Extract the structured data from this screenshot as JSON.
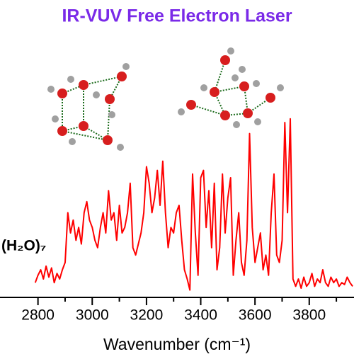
{
  "chart_data": {
    "type": "line",
    "title": "IR-VUV Free Electron Laser",
    "xlabel": "Wavenumber (cm⁻¹)",
    "annotation": "(H₂O)₇",
    "x": [
      2790,
      2800,
      2810,
      2820,
      2830,
      2840,
      2850,
      2860,
      2870,
      2880,
      2890,
      2900,
      2910,
      2920,
      2930,
      2940,
      2950,
      2960,
      2970,
      2980,
      2990,
      3000,
      3010,
      3020,
      3030,
      3040,
      3050,
      3060,
      3070,
      3080,
      3090,
      3100,
      3110,
      3120,
      3130,
      3140,
      3150,
      3160,
      3170,
      3180,
      3190,
      3200,
      3210,
      3220,
      3230,
      3240,
      3250,
      3260,
      3270,
      3280,
      3290,
      3300,
      3310,
      3320,
      3330,
      3340,
      3350,
      3360,
      3370,
      3380,
      3390,
      3400,
      3410,
      3420,
      3430,
      3440,
      3450,
      3460,
      3470,
      3480,
      3490,
      3500,
      3510,
      3520,
      3530,
      3540,
      3550,
      3560,
      3570,
      3580,
      3590,
      3600,
      3610,
      3620,
      3630,
      3640,
      3650,
      3660,
      3670,
      3680,
      3690,
      3700,
      3710,
      3720,
      3730,
      3740,
      3750,
      3760,
      3770,
      3780,
      3790,
      3800,
      3810,
      3820,
      3830,
      3840,
      3850,
      3860,
      3870,
      3880,
      3890,
      3900,
      3910,
      3920,
      3930,
      3940,
      3950,
      3960
    ],
    "series": [
      {
        "color": "#ff0000",
        "values": [
          8,
          12,
          15,
          10,
          17,
          11,
          16,
          8,
          13,
          10,
          15,
          19,
          46,
          35,
          42,
          31,
          38,
          29,
          46,
          52,
          42,
          38,
          31,
          27,
          38,
          46,
          35,
          58,
          42,
          46,
          31,
          50,
          35,
          38,
          46,
          62,
          27,
          23,
          29,
          35,
          46,
          71,
          62,
          46,
          54,
          69,
          50,
          74,
          46,
          27,
          38,
          35,
          46,
          50,
          31,
          15,
          10,
          4,
          67,
          35,
          12,
          65,
          69,
          38,
          58,
          27,
          62,
          15,
          27,
          67,
          35,
          54,
          65,
          12,
          31,
          46,
          19,
          12,
          31,
          89,
          38,
          19,
          27,
          35,
          15,
          23,
          12,
          46,
          67,
          23,
          19,
          31,
          95,
          46,
          97,
          10,
          6,
          10,
          5,
          11,
          6,
          8,
          13,
          6,
          10,
          8,
          15,
          8,
          6,
          11,
          8,
          10,
          6,
          8,
          7,
          11,
          8,
          6
        ]
      }
    ],
    "xlim": [
      2660,
      3965
    ],
    "ylim": [
      0,
      100
    ],
    "xticks": [
      2800,
      3000,
      3200,
      3400,
      3600,
      3800
    ],
    "xminorticks": [
      2900,
      3100,
      3300,
      3500,
      3700,
      3900
    ]
  }
}
